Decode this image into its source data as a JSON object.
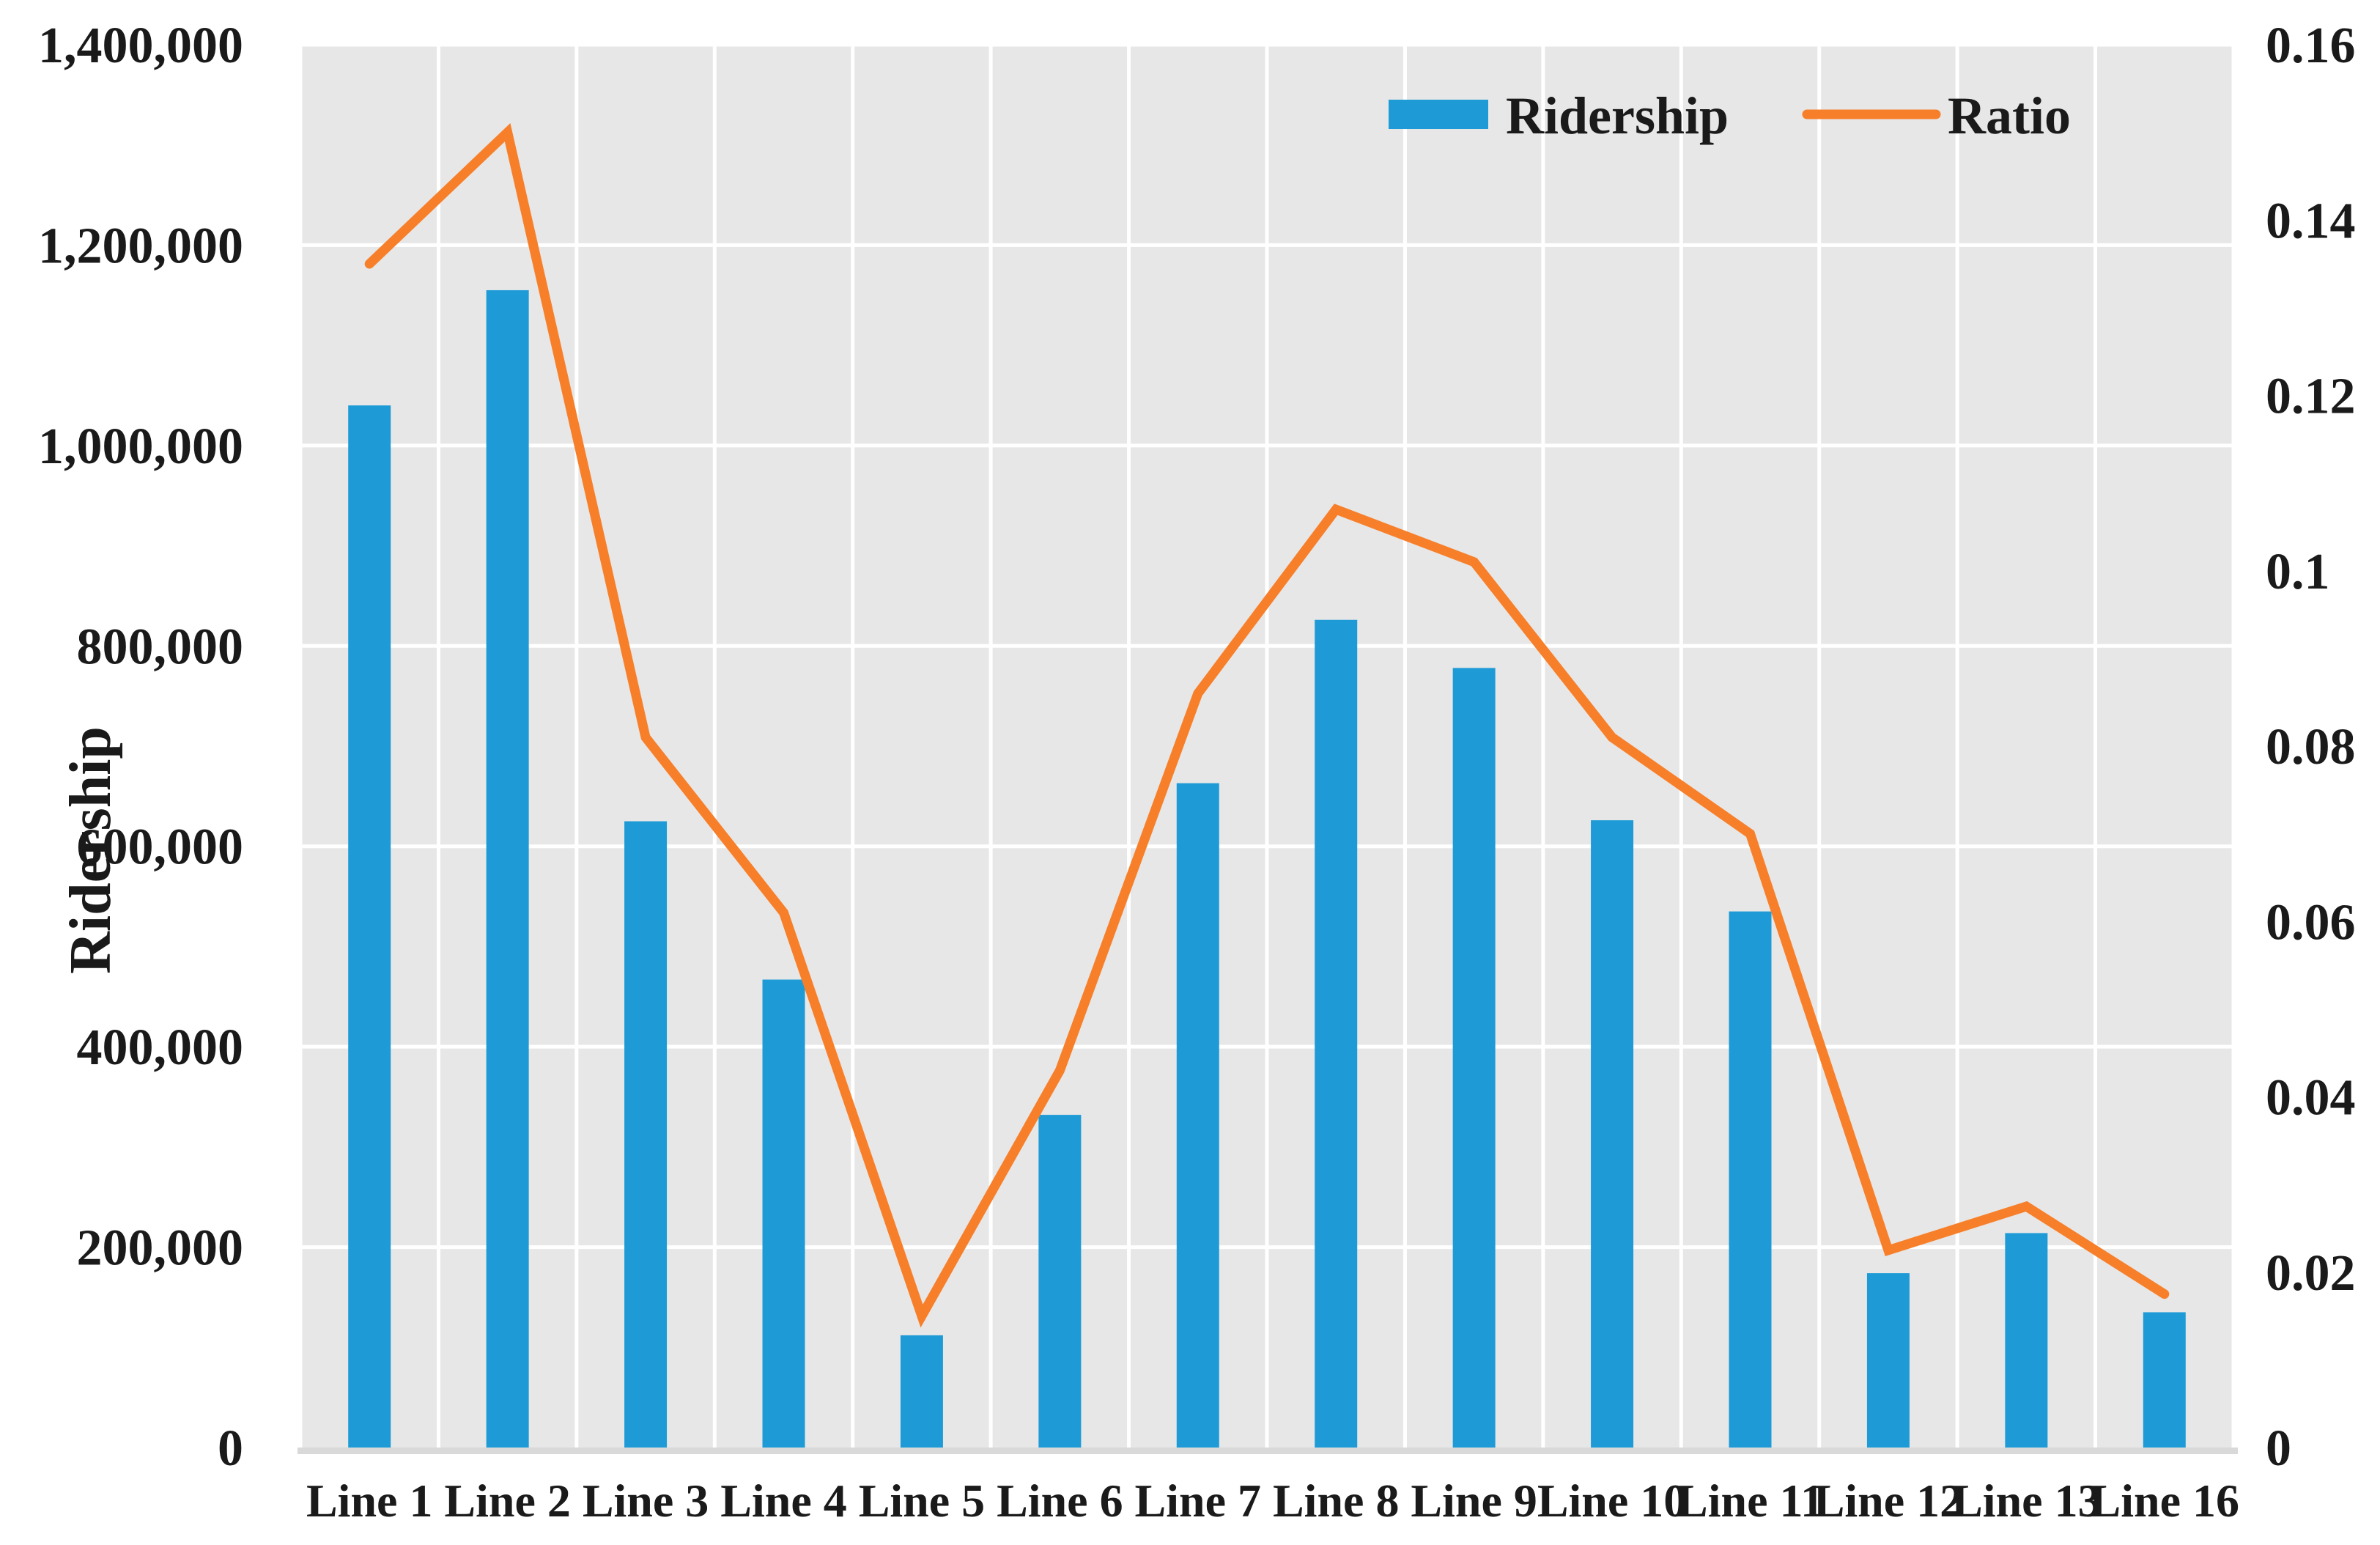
{
  "chart_data": {
    "type": "combo",
    "title": "",
    "categories": [
      "Line 1",
      "Line 2",
      "Line 3",
      "Line 4",
      "Line 5",
      "Line 6",
      "Line 7",
      "Line 8",
      "Line 9",
      "Line 10",
      "Line 11",
      "Line 12",
      "Line 13",
      "Line 16"
    ],
    "series": [
      {
        "name": "Ridership",
        "type": "bar",
        "axis": "left",
        "color": "#1e9bd7",
        "values": [
          1040000,
          1155000,
          625000,
          467000,
          112000,
          332000,
          663000,
          826000,
          778000,
          626000,
          535000,
          174000,
          214000,
          135000
        ]
      },
      {
        "name": "Ratio",
        "type": "line",
        "axis": "right",
        "color": "#f77f2a",
        "values": [
          0.135,
          0.15,
          0.081,
          0.061,
          0.015,
          0.043,
          0.086,
          0.107,
          0.101,
          0.081,
          0.07,
          0.0225,
          0.0275,
          0.0175
        ]
      }
    ],
    "left_axis": {
      "title": "Ridership",
      "min": 0,
      "max": 1400000,
      "step": 200000,
      "tick_labels": [
        "0",
        "200,000",
        "400,000",
        "600,000",
        "800,000",
        "1,000,000",
        "1,200,000",
        "1,400,000"
      ]
    },
    "right_axis": {
      "title": "",
      "min": 0,
      "max": 0.16,
      "step": 0.02,
      "tick_labels": [
        "0",
        "0.02",
        "0.04",
        "0.06",
        "0.08",
        "0.1",
        "0.12",
        "0.14",
        "0.16"
      ]
    },
    "legend": {
      "position": "top-right-inside",
      "entries": [
        {
          "label": "Ridership",
          "swatch": "rect",
          "color": "#1e9bd7"
        },
        {
          "label": "Ratio",
          "swatch": "line",
          "color": "#f77f2a"
        }
      ]
    },
    "grid": {
      "on": true,
      "color": "#ffffff",
      "plot_background": "#e7e7e7",
      "baseline_color": "#d9d9d9"
    }
  }
}
